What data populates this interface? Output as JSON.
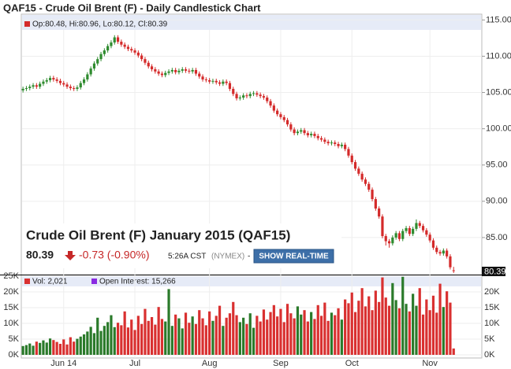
{
  "header": {
    "title": "QAF15 - Crude Oil Brent (F) - Daily Candlestick Chart"
  },
  "info": {
    "name": "Crude Oil Brent (F) January 2015 (QAF15)",
    "change": "-0.73 (-0.90%)",
    "time": "5:26A CST",
    "exchange": "(NYMEX)",
    "separator": "-",
    "button": "SHOW REAL-TIME"
  },
  "chart_data": [
    {
      "type": "candlestick",
      "legend": "Op:80.48, Hi:80.96, Lo:80.12, Cl:80.39",
      "up_color": "#2e8b2e",
      "down_color": "#d42a2a",
      "ylim": [
        80,
        115.8
      ],
      "yticks": [
        {
          "value": 115,
          "label": "115.00"
        },
        {
          "value": 110,
          "label": "110.00"
        },
        {
          "value": 105,
          "label": "105.00"
        },
        {
          "value": 100,
          "label": "100.00"
        },
        {
          "value": 95,
          "label": "95.00"
        },
        {
          "value": 90,
          "label": "90.00"
        },
        {
          "value": 85,
          "label": "85.00"
        }
      ],
      "categories": [
        null,
        null,
        null,
        null,
        null,
        null,
        null,
        null,
        null,
        null,
        null,
        null,
        "Jun 14",
        null,
        null,
        null,
        null,
        null,
        null,
        null,
        null,
        null,
        null,
        null,
        null,
        null,
        null,
        null,
        null,
        null,
        null,
        null,
        null,
        "Jul",
        null,
        null,
        null,
        null,
        null,
        null,
        null,
        null,
        null,
        null,
        null,
        null,
        null,
        null,
        null,
        null,
        null,
        null,
        null,
        null,
        null,
        "Aug",
        null,
        null,
        null,
        null,
        null,
        null,
        null,
        null,
        null,
        null,
        null,
        null,
        null,
        null,
        null,
        null,
        null,
        null,
        null,
        null,
        "Sep",
        null,
        null,
        null,
        null,
        null,
        null,
        null,
        null,
        null,
        null,
        null,
        null,
        null,
        null,
        null,
        null,
        null,
        null,
        null,
        null,
        "Oct",
        null,
        null,
        null,
        null,
        null,
        null,
        null,
        null,
        null,
        null,
        null,
        null,
        null,
        null,
        null,
        null,
        null,
        null,
        null,
        null,
        null,
        null,
        "Nov",
        null,
        null,
        null,
        null,
        null,
        null,
        null
      ],
      "ohlc": [
        [
          105.3,
          105.8,
          105.0,
          105.5
        ],
        [
          105.5,
          105.9,
          105.2,
          105.6
        ],
        [
          105.6,
          106.1,
          105.3,
          105.8
        ],
        [
          105.8,
          106.3,
          105.5,
          106.0
        ],
        [
          106.0,
          106.3,
          105.5,
          105.8
        ],
        [
          105.8,
          106.5,
          105.5,
          106.2
        ],
        [
          106.2,
          106.8,
          105.9,
          106.5
        ],
        [
          106.5,
          107.0,
          106.2,
          106.7
        ],
        [
          106.7,
          107.3,
          106.4,
          107.0
        ],
        [
          107.0,
          107.3,
          106.5,
          106.8
        ],
        [
          106.8,
          107.1,
          106.3,
          106.6
        ],
        [
          106.6,
          106.9,
          106.0,
          106.3
        ],
        [
          106.3,
          106.6,
          105.8,
          106.1
        ],
        [
          106.1,
          106.4,
          105.5,
          105.8
        ],
        [
          105.8,
          106.1,
          105.3,
          105.6
        ],
        [
          105.6,
          105.9,
          105.2,
          105.5
        ],
        [
          105.5,
          106.0,
          105.2,
          105.7
        ],
        [
          105.7,
          106.6,
          105.4,
          106.3
        ],
        [
          106.3,
          107.1,
          106.0,
          106.8
        ],
        [
          106.8,
          107.8,
          106.5,
          107.5
        ],
        [
          107.5,
          108.6,
          107.2,
          108.3
        ],
        [
          108.3,
          109.3,
          108.0,
          109.0
        ],
        [
          109.0,
          109.9,
          108.7,
          109.6
        ],
        [
          109.6,
          110.6,
          109.3,
          110.3
        ],
        [
          110.3,
          111.1,
          110.0,
          110.8
        ],
        [
          110.8,
          111.7,
          110.5,
          111.4
        ],
        [
          111.4,
          112.2,
          111.1,
          111.9
        ],
        [
          111.9,
          112.9,
          111.6,
          112.6
        ],
        [
          112.6,
          112.9,
          111.7,
          112.0
        ],
        [
          112.0,
          112.3,
          111.3,
          111.6
        ],
        [
          111.6,
          111.9,
          111.0,
          111.3
        ],
        [
          111.3,
          111.6,
          110.7,
          111.0
        ],
        [
          111.0,
          111.3,
          110.5,
          110.8
        ],
        [
          110.8,
          111.1,
          110.2,
          110.5
        ],
        [
          110.5,
          110.8,
          109.8,
          110.1
        ],
        [
          110.1,
          110.4,
          109.3,
          109.6
        ],
        [
          109.6,
          109.9,
          108.8,
          109.1
        ],
        [
          109.1,
          109.4,
          108.3,
          108.6
        ],
        [
          108.6,
          108.9,
          107.9,
          108.2
        ],
        [
          108.2,
          108.5,
          107.6,
          107.9
        ],
        [
          107.9,
          108.2,
          107.3,
          107.6
        ],
        [
          107.6,
          107.9,
          107.1,
          107.4
        ],
        [
          107.4,
          108.0,
          107.1,
          107.7
        ],
        [
          107.7,
          108.2,
          107.4,
          107.9
        ],
        [
          107.9,
          108.4,
          107.6,
          108.1
        ],
        [
          108.1,
          108.4,
          107.5,
          107.8
        ],
        [
          107.8,
          108.3,
          107.5,
          108.0
        ],
        [
          108.0,
          108.5,
          107.7,
          108.2
        ],
        [
          108.2,
          108.5,
          107.7,
          108.0
        ],
        [
          108.0,
          108.3,
          107.6,
          107.9
        ],
        [
          107.9,
          108.4,
          107.6,
          108.1
        ],
        [
          108.1,
          108.4,
          107.3,
          107.6
        ],
        [
          107.6,
          107.9,
          106.9,
          107.2
        ],
        [
          107.2,
          107.5,
          106.5,
          106.8
        ],
        [
          106.8,
          107.1,
          106.4,
          106.7
        ],
        [
          106.7,
          107.0,
          106.2,
          106.5
        ],
        [
          106.5,
          106.9,
          106.2,
          106.6
        ],
        [
          106.6,
          106.9,
          106.1,
          106.4
        ],
        [
          106.4,
          106.7,
          105.9,
          106.2
        ],
        [
          106.2,
          106.8,
          105.9,
          106.5
        ],
        [
          106.5,
          106.8,
          106.0,
          106.3
        ],
        [
          106.3,
          106.6,
          105.2,
          105.5
        ],
        [
          105.5,
          105.8,
          104.5,
          104.8
        ],
        [
          104.8,
          105.1,
          103.9,
          104.2
        ],
        [
          104.2,
          104.6,
          103.9,
          104.3
        ],
        [
          104.3,
          104.9,
          104.0,
          104.6
        ],
        [
          104.6,
          104.9,
          104.2,
          104.5
        ],
        [
          104.5,
          105.1,
          104.2,
          104.8
        ],
        [
          104.8,
          105.2,
          104.5,
          104.9
        ],
        [
          104.9,
          105.2,
          104.4,
          104.7
        ],
        [
          104.7,
          105.0,
          104.2,
          104.5
        ],
        [
          104.5,
          104.8,
          104.0,
          104.3
        ],
        [
          104.3,
          104.6,
          103.5,
          103.8
        ],
        [
          103.8,
          104.1,
          102.9,
          103.2
        ],
        [
          103.2,
          103.5,
          102.2,
          102.5
        ],
        [
          102.5,
          102.8,
          101.7,
          102.0
        ],
        [
          102.0,
          102.3,
          101.3,
          101.6
        ],
        [
          101.6,
          101.9,
          100.9,
          101.2
        ],
        [
          101.2,
          101.5,
          100.3,
          100.6
        ],
        [
          100.6,
          100.9,
          99.6,
          99.9
        ],
        [
          99.9,
          100.2,
          99.1,
          99.4
        ],
        [
          99.4,
          99.9,
          99.1,
          99.6
        ],
        [
          99.6,
          100.1,
          99.3,
          99.8
        ],
        [
          99.8,
          100.1,
          99.1,
          99.4
        ],
        [
          99.4,
          99.7,
          98.8,
          99.1
        ],
        [
          99.1,
          99.6,
          98.8,
          99.3
        ],
        [
          99.3,
          99.6,
          98.7,
          99.0
        ],
        [
          99.0,
          99.3,
          98.4,
          98.7
        ],
        [
          98.7,
          99.0,
          98.2,
          98.5
        ],
        [
          98.5,
          98.8,
          97.9,
          98.2
        ],
        [
          98.2,
          98.5,
          97.7,
          98.0
        ],
        [
          98.0,
          98.4,
          97.7,
          98.1
        ],
        [
          98.1,
          98.4,
          97.6,
          97.9
        ],
        [
          97.9,
          98.2,
          97.3,
          97.6
        ],
        [
          97.6,
          98.1,
          97.3,
          97.8
        ],
        [
          97.8,
          98.1,
          96.9,
          97.2
        ],
        [
          97.2,
          97.5,
          96.0,
          96.3
        ],
        [
          96.3,
          96.6,
          95.1,
          95.4
        ],
        [
          95.4,
          95.7,
          94.2,
          94.5
        ],
        [
          94.5,
          94.8,
          93.5,
          93.8
        ],
        [
          93.8,
          94.1,
          92.7,
          93.0
        ],
        [
          93.0,
          93.3,
          92.1,
          92.4
        ],
        [
          92.4,
          92.7,
          91.3,
          91.6
        ],
        [
          91.6,
          91.9,
          90.0,
          90.3
        ],
        [
          90.3,
          90.6,
          88.7,
          89.0
        ],
        [
          89.0,
          89.3,
          87.6,
          87.9
        ],
        [
          87.9,
          88.2,
          84.9,
          85.2
        ],
        [
          85.2,
          85.5,
          83.9,
          84.5
        ],
        [
          84.5,
          84.8,
          83.6,
          84.2
        ],
        [
          84.2,
          85.3,
          83.9,
          85.0
        ],
        [
          85.0,
          85.9,
          84.7,
          85.6
        ],
        [
          85.6,
          85.9,
          84.5,
          84.8
        ],
        [
          84.8,
          86.2,
          84.5,
          85.9
        ],
        [
          85.9,
          86.6,
          85.6,
          86.3
        ],
        [
          86.3,
          86.6,
          85.2,
          85.5
        ],
        [
          85.5,
          86.5,
          85.2,
          86.2
        ],
        [
          86.2,
          87.5,
          85.9,
          87.0
        ],
        [
          87.0,
          87.3,
          86.3,
          86.6
        ],
        [
          86.6,
          86.9,
          85.7,
          86.0
        ],
        [
          86.0,
          86.3,
          85.1,
          85.4
        ],
        [
          85.4,
          85.7,
          84.3,
          84.6
        ],
        [
          84.6,
          84.9,
          83.3,
          83.6
        ],
        [
          83.6,
          83.9,
          82.7,
          83.0
        ],
        [
          83.0,
          83.3,
          82.5,
          82.8
        ],
        [
          82.8,
          83.5,
          82.5,
          83.2
        ],
        [
          83.2,
          83.5,
          82.1,
          82.4
        ],
        [
          82.4,
          82.7,
          80.6,
          80.9
        ],
        [
          80.48,
          80.96,
          80.12,
          80.39
        ]
      ]
    },
    {
      "type": "bar",
      "legend": [
        "Vol: 2,021",
        "Open Interest: 15,266"
      ],
      "up_color": "#2a7a2a",
      "down_color": "#d93030",
      "ylim": [
        0,
        25000
      ],
      "yticks": [
        {
          "value": 25000,
          "label": "25K"
        },
        {
          "value": 20000,
          "label": "20K"
        },
        {
          "value": 15000,
          "label": "15K"
        },
        {
          "value": 10000,
          "label": "10K"
        },
        {
          "value": 5000,
          "label": "5K"
        },
        {
          "value": 0,
          "label": "0K"
        }
      ],
      "values": [
        2800,
        3100,
        3600,
        2900,
        4200,
        3800,
        4600,
        3900,
        5200,
        4700,
        4100,
        3500,
        4900,
        3300,
        5600,
        4200,
        5100,
        5800,
        6500,
        7400,
        8900,
        6900,
        11800,
        7600,
        9200,
        10400,
        12600,
        8800,
        10200,
        9400,
        13800,
        8700,
        11200,
        7900,
        12400,
        9800,
        14600,
        10800,
        12000,
        9600,
        15200,
        11400,
        10600,
        20900,
        9200,
        12800,
        11600,
        8400,
        13400,
        10200,
        12200,
        9800,
        14200,
        11600,
        9400,
        13800,
        10800,
        12400,
        15600,
        9200,
        11800,
        13200,
        16800,
        12600,
        10400,
        11800,
        9800,
        13200,
        8600,
        12400,
        10600,
        14400,
        11200,
        13600,
        15800,
        12200,
        14600,
        10400,
        16200,
        13200,
        11600,
        15400,
        12800,
        14200,
        10600,
        13600,
        11400,
        15800,
        12400,
        16600,
        10800,
        13400,
        12600,
        14800,
        11200,
        17600,
        16400,
        19800,
        13600,
        17200,
        21200,
        15400,
        18600,
        14200,
        20400,
        16800,
        24600,
        18200,
        15600,
        22800,
        17400,
        14800,
        24800,
        16200,
        13800,
        19400,
        15600,
        21200,
        12800,
        17600,
        14200,
        18800,
        13400,
        22600,
        15200,
        20200,
        16600,
        2021
      ]
    }
  ]
}
